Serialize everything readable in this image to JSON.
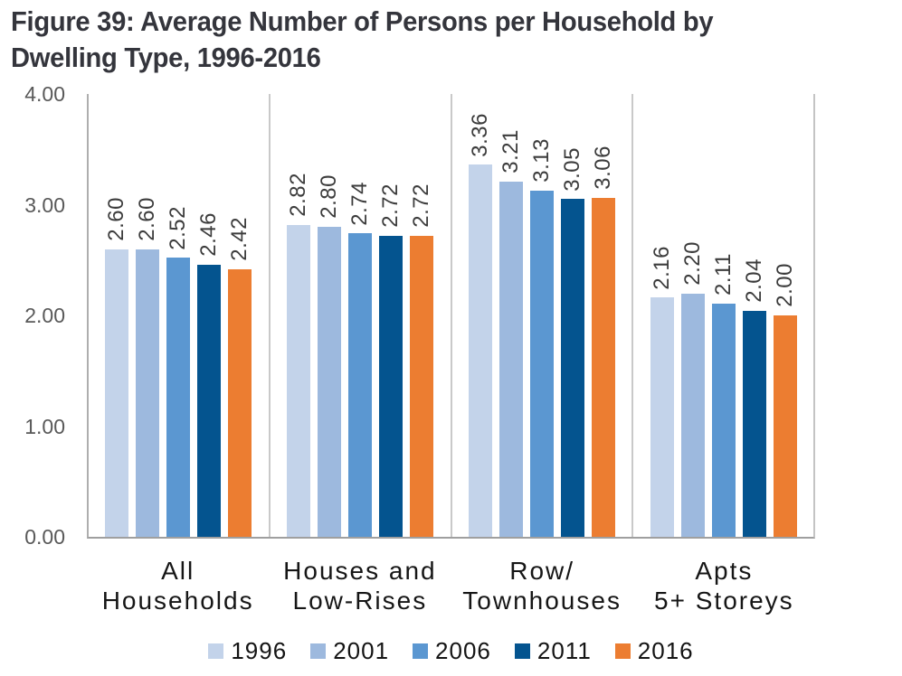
{
  "figure": {
    "title_lines": [
      "Figure 39: Average Number of Persons per Household by",
      "Dwelling Type, 1996-2016"
    ]
  },
  "chart_data": {
    "type": "bar",
    "title": "Figure 39: Average Number of Persons per Household by Dwelling Type, 1996-2016",
    "categories": [
      "All\nHouseholds",
      "Houses and\nLow-Rises",
      "Row/\nTownhouses",
      "Apts\n5+ Storeys"
    ],
    "series": [
      {
        "name": "1996",
        "color": "#c3d3ea",
        "values": [
          2.6,
          2.82,
          3.36,
          2.16
        ]
      },
      {
        "name": "2001",
        "color": "#9db9de",
        "values": [
          2.6,
          2.8,
          3.21,
          2.2
        ]
      },
      {
        "name": "2006",
        "color": "#5b97d1",
        "values": [
          2.52,
          2.74,
          3.13,
          2.11
        ]
      },
      {
        "name": "2011",
        "color": "#04548f",
        "values": [
          2.46,
          2.72,
          3.05,
          2.04
        ]
      },
      {
        "name": "2016",
        "color": "#ec7d31",
        "values": [
          2.42,
          2.72,
          3.06,
          2.0
        ]
      }
    ],
    "ylim": [
      0,
      4
    ],
    "ytick_labels": [
      "4.00",
      "3.00",
      "2.00",
      "1.00",
      "0.00"
    ],
    "value_label_decimals": 2,
    "xlabel": "",
    "ylabel": "",
    "grid": "vertical-category-separators",
    "legend_position": "bottom",
    "bar_value_labels_rotated": true
  }
}
